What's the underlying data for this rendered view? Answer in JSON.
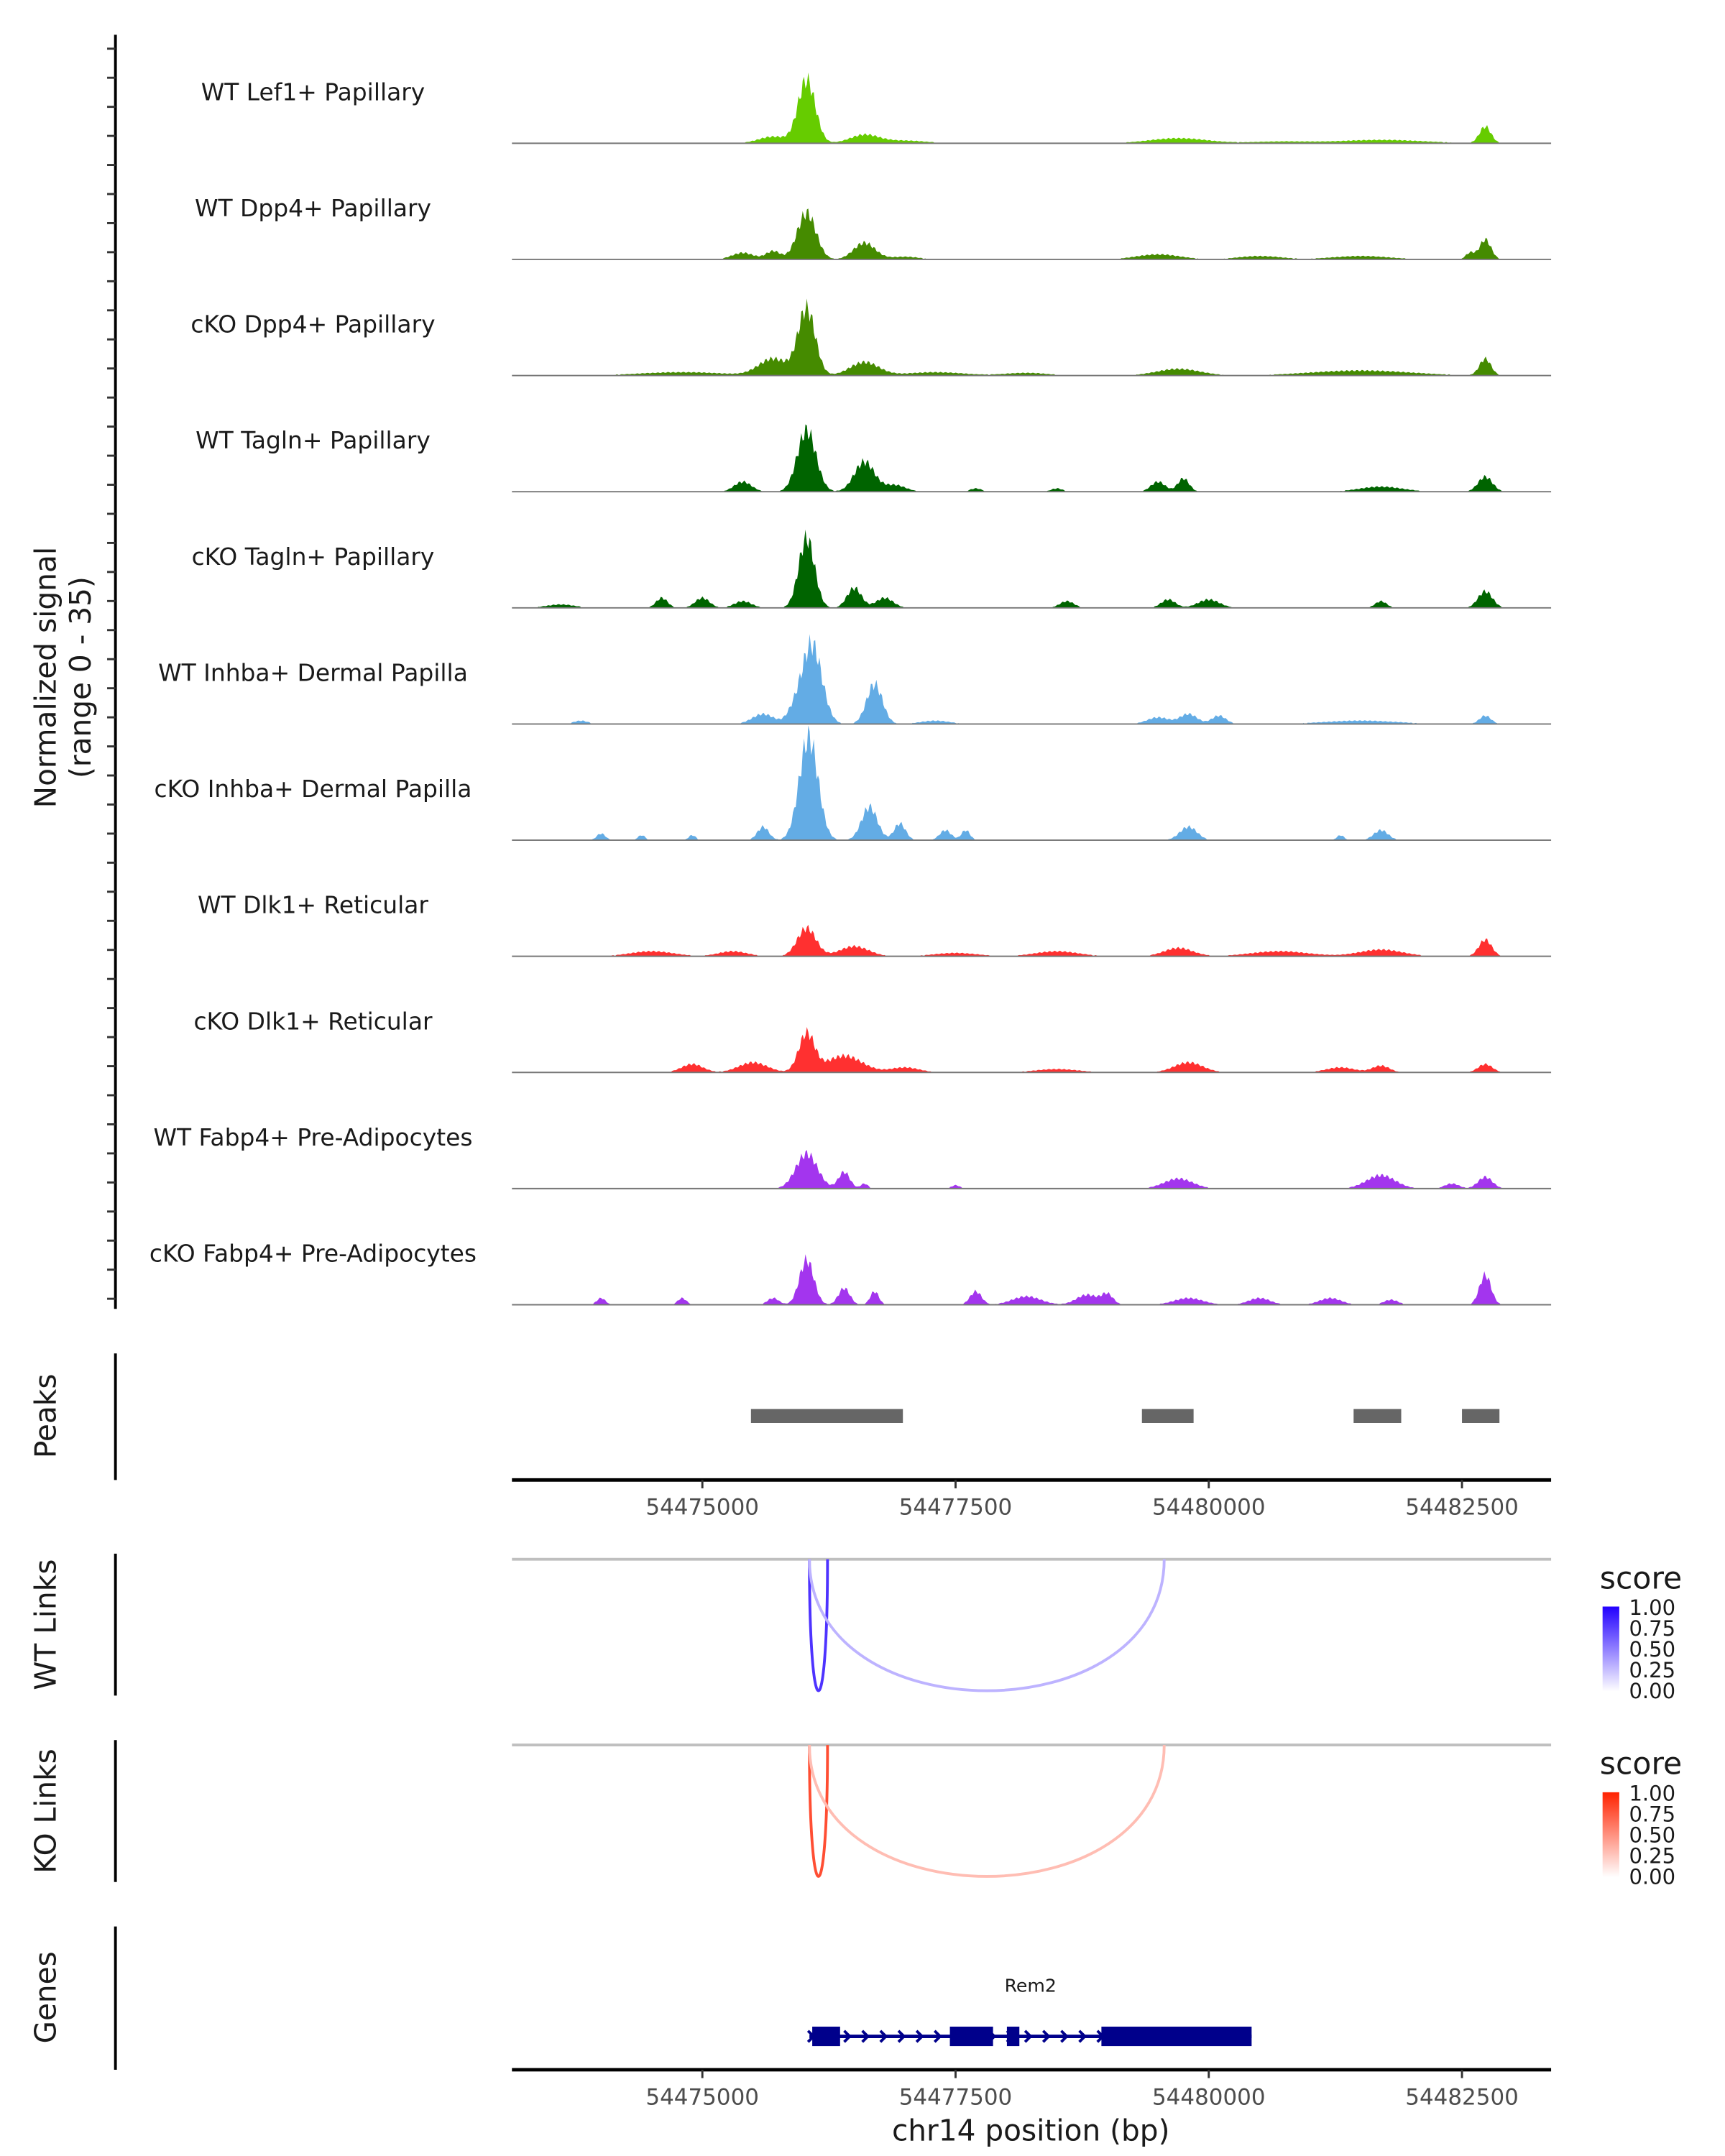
{
  "chart_data": {
    "type": "area",
    "title": "",
    "xlabel": "chr14 position (bp)",
    "ylabel": "Normalized signal",
    "ylabel_sub": "(range 0 - 35)",
    "xlim": [
      54473120,
      54483380
    ],
    "ylim": [
      0,
      35
    ],
    "x_ticks": [
      54475000,
      54477500,
      54480000,
      54482500
    ],
    "x_tick_labels": [
      "54475000",
      "54477500",
      "54480000",
      "54482500"
    ],
    "tracks": [
      {
        "name": "WT Lef1+ Papillary",
        "color": "#66cc00",
        "peaks": [
          [
            54476030,
            19,
            120
          ],
          [
            54475700,
            2,
            200
          ],
          [
            54476600,
            2.5,
            200
          ],
          [
            54477000,
            0.8,
            300
          ],
          [
            54479700,
            1.5,
            400
          ],
          [
            54480700,
            0.5,
            400
          ],
          [
            54481700,
            1,
            600
          ],
          [
            54482730,
            5,
            80
          ]
        ]
      },
      {
        "name": "WT Dpp4+ Papillary",
        "color": "#458b00",
        "peaks": [
          [
            54476030,
            14,
            130
          ],
          [
            54476600,
            5,
            150
          ],
          [
            54475400,
            2,
            150
          ],
          [
            54475700,
            2.5,
            100
          ],
          [
            54477000,
            0.8,
            200
          ],
          [
            54479500,
            1.5,
            300
          ],
          [
            54480500,
            1,
            300
          ],
          [
            54481500,
            1,
            400
          ],
          [
            54482580,
            2,
            60
          ],
          [
            54482730,
            6,
            80
          ]
        ]
      },
      {
        "name": "cKO Dpp4+ Papillary",
        "color": "#458b00",
        "peaks": [
          [
            54476030,
            20,
            120
          ],
          [
            54475700,
            5,
            200
          ],
          [
            54476600,
            4,
            200
          ],
          [
            54474800,
            1,
            600
          ],
          [
            54477300,
            1,
            400
          ],
          [
            54478200,
            0.8,
            300
          ],
          [
            54479700,
            2,
            300
          ],
          [
            54481500,
            1.5,
            700
          ],
          [
            54482730,
            5,
            80
          ]
        ]
      },
      {
        "name": "WT Tagln+ Papillary",
        "color": "#006400",
        "peaks": [
          [
            54476030,
            18.5,
            130
          ],
          [
            54476600,
            9,
            140
          ],
          [
            54475400,
            3,
            120
          ],
          [
            54476900,
            2,
            150
          ],
          [
            54477700,
            1,
            80
          ],
          [
            54478500,
            1,
            80
          ],
          [
            54479500,
            3,
            100
          ],
          [
            54479750,
            4,
            80
          ],
          [
            54481700,
            1.5,
            300
          ],
          [
            54482730,
            4.5,
            100
          ]
        ]
      },
      {
        "name": "cKO Tagln+ Papillary",
        "color": "#006400",
        "peaks": [
          [
            54476030,
            21,
            110
          ],
          [
            54476500,
            6,
            100
          ],
          [
            54476800,
            3,
            120
          ],
          [
            54475000,
            3,
            100
          ],
          [
            54475400,
            2,
            120
          ],
          [
            54474600,
            3,
            80
          ],
          [
            54473600,
            1,
            200
          ],
          [
            54478600,
            2,
            100
          ],
          [
            54479600,
            2.5,
            100
          ],
          [
            54480000,
            2.5,
            150
          ],
          [
            54481700,
            2,
            80
          ],
          [
            54482730,
            5,
            100
          ]
        ]
      },
      {
        "name": "WT Inhba+ Dermal Papilla",
        "color": "#63ace5",
        "peaks": [
          [
            54476080,
            24,
            140
          ],
          [
            54476700,
            12,
            110
          ],
          [
            54475600,
            3,
            150
          ],
          [
            54475900,
            3,
            100
          ],
          [
            54477300,
            1,
            200
          ],
          [
            54479500,
            2,
            150
          ],
          [
            54479800,
            3,
            120
          ],
          [
            54480100,
            2.5,
            100
          ],
          [
            54481500,
            1,
            500
          ],
          [
            54482730,
            2.5,
            80
          ],
          [
            54473800,
            1,
            100
          ]
        ]
      },
      {
        "name": "cKO Inhba+ Dermal Papilla",
        "color": "#63ace5",
        "peaks": [
          [
            54476050,
            31,
            130
          ],
          [
            54476650,
            10,
            110
          ],
          [
            54476950,
            5,
            80
          ],
          [
            54475600,
            4,
            80
          ],
          [
            54477400,
            3,
            80
          ],
          [
            54477600,
            3,
            60
          ],
          [
            54479800,
            4,
            120
          ],
          [
            54481700,
            3,
            100
          ],
          [
            54481300,
            1.5,
            50
          ],
          [
            54474000,
            2,
            60
          ],
          [
            54474400,
            1.5,
            50
          ],
          [
            54474900,
            1.5,
            50
          ]
        ]
      },
      {
        "name": "WT Dlk1+ Reticular",
        "color": "#ff3030",
        "peaks": [
          [
            54476030,
            8.5,
            130
          ],
          [
            54476500,
            3,
            200
          ],
          [
            54474500,
            1.5,
            300
          ],
          [
            54475300,
            1.5,
            200
          ],
          [
            54477500,
            1,
            300
          ],
          [
            54478500,
            1.5,
            300
          ],
          [
            54479700,
            2.5,
            200
          ],
          [
            54480700,
            1.5,
            400
          ],
          [
            54481700,
            2,
            300
          ],
          [
            54482730,
            5,
            90
          ]
        ]
      },
      {
        "name": "cKO Dlk1+ Reticular",
        "color": "#ff3030",
        "peaks": [
          [
            54476030,
            11.5,
            110
          ],
          [
            54476400,
            5,
            250
          ],
          [
            54475500,
            3,
            200
          ],
          [
            54474900,
            2.5,
            150
          ],
          [
            54477000,
            1.5,
            200
          ],
          [
            54478500,
            1,
            300
          ],
          [
            54479800,
            3,
            200
          ],
          [
            54481300,
            1.5,
            200
          ],
          [
            54481700,
            2,
            120
          ],
          [
            54482730,
            2.5,
            100
          ]
        ]
      },
      {
        "name": "WT Fabp4+ Pre-Adipocytes",
        "color": "#a335ee",
        "peaks": [
          [
            54476030,
            10.5,
            150
          ],
          [
            54476400,
            5,
            80
          ],
          [
            54476600,
            1.5,
            50
          ],
          [
            54477500,
            1,
            60
          ],
          [
            54479700,
            3,
            200
          ],
          [
            54481700,
            4,
            200
          ],
          [
            54482400,
            1.5,
            100
          ],
          [
            54482730,
            3.5,
            100
          ]
        ]
      },
      {
        "name": "cKO Fabp4+ Pre-Adipocytes",
        "color": "#a335ee",
        "peaks": [
          [
            54476030,
            13.5,
            100
          ],
          [
            54476400,
            5,
            80
          ],
          [
            54476700,
            4,
            60
          ],
          [
            54475700,
            2,
            80
          ],
          [
            54477700,
            4,
            80
          ],
          [
            54478200,
            2.5,
            200
          ],
          [
            54478800,
            3,
            150
          ],
          [
            54479000,
            3,
            80
          ],
          [
            54479800,
            2,
            200
          ],
          [
            54480500,
            2,
            150
          ],
          [
            54481200,
            2,
            150
          ],
          [
            54481800,
            1.5,
            100
          ],
          [
            54482730,
            9,
            80
          ],
          [
            54474000,
            2,
            60
          ],
          [
            54474800,
            2,
            60
          ]
        ]
      }
    ],
    "peaks_track": {
      "label": "Peaks",
      "color": "#666666",
      "regions": [
        [
          54475480,
          54476980
        ],
        [
          54479340,
          54479850
        ],
        [
          54481430,
          54481900
        ],
        [
          54482500,
          54482870
        ]
      ]
    },
    "links_tracks": [
      {
        "label": "WT Links",
        "legend_title": "score",
        "low_color": "#ffffff",
        "high_color": "#2200ff",
        "links": [
          {
            "start": 54476057,
            "end": 54476236,
            "score": 0.8
          },
          {
            "start": 54476057,
            "end": 54479560,
            "score": 0.3
          }
        ]
      },
      {
        "label": "KO Links",
        "legend_title": "score",
        "low_color": "#ffffff",
        "high_color": "#ff2200",
        "links": [
          {
            "start": 54476057,
            "end": 54476236,
            "score": 0.8
          },
          {
            "start": 54476057,
            "end": 54479560,
            "score": 0.3
          }
        ]
      }
    ],
    "legend_ticks": [
      "1.00",
      "0.75",
      "0.50",
      "0.25",
      "0.00"
    ],
    "genes_track": {
      "label": "Genes",
      "color": "#00008b",
      "genes": [
        {
          "name": "Rem2",
          "start": 54476057,
          "end": 54480423,
          "strand": "+",
          "exons": [
            [
              54476085,
              54476360
            ],
            [
              54477444,
              54477870
            ],
            [
              54478007,
              54478130
            ],
            [
              54478940,
              54480423
            ]
          ]
        }
      ]
    }
  }
}
